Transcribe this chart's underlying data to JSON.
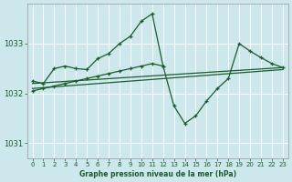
{
  "background_color": "#cce8ed",
  "plot_bg_color": "#cce8ed",
  "grid_color": "#b0d8df",
  "line_color": "#1a5c2a",
  "title": "Graphe pression niveau de la mer (hPa)",
  "ylim": [
    1030.7,
    1033.8
  ],
  "yticks": [
    1031,
    1032,
    1033
  ],
  "xlim": [
    -0.5,
    23.5
  ],
  "xticks": [
    0,
    1,
    2,
    3,
    4,
    5,
    6,
    7,
    8,
    9,
    10,
    11,
    12,
    13,
    14,
    15,
    16,
    17,
    18,
    19,
    20,
    21,
    22,
    23
  ],
  "series1_x": [
    0,
    1,
    2,
    3,
    4,
    5,
    6,
    7,
    8,
    9,
    10,
    11,
    12
  ],
  "series1_y": [
    1032.25,
    1032.2,
    1032.5,
    1032.55,
    1032.5,
    1032.48,
    1032.7,
    1032.8,
    1033.0,
    1033.15,
    1033.45,
    1033.6,
    1032.55
  ],
  "series2_x": [
    0,
    1,
    2,
    3,
    4,
    5,
    6,
    7,
    8,
    9,
    10,
    11,
    12,
    13,
    14,
    15,
    16,
    17,
    18,
    19,
    20,
    21,
    22,
    23
  ],
  "series2_y": [
    1032.05,
    1032.1,
    1032.15,
    1032.2,
    1032.25,
    1032.3,
    1032.35,
    1032.4,
    1032.45,
    1032.5,
    1032.55,
    1032.6,
    1032.55,
    1031.75,
    1031.4,
    1031.55,
    1031.85,
    1032.1,
    1032.3,
    1033.0,
    1032.85,
    1032.72,
    1032.6,
    1032.52
  ],
  "trend1_x": [
    0,
    23
  ],
  "trend1_y": [
    1032.2,
    1032.52
  ],
  "trend2_x": [
    0,
    23
  ],
  "trend2_y": [
    1032.1,
    1032.48
  ]
}
